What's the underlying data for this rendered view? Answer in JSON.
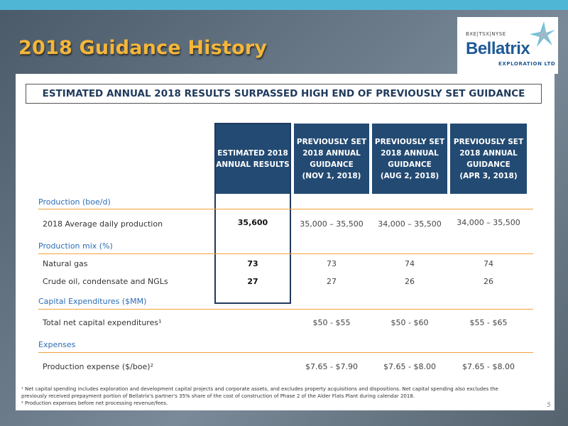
{
  "slide": {
    "title": "2018 Guidance History",
    "page_number": "5"
  },
  "logo": {
    "ticker": "BXE|TSX|NYSE",
    "name": "Bellatrix",
    "subtitle": "EXPLORATION LTD"
  },
  "banner": "ESTIMATED ANNUAL 2018 RESULTS SURPASSED HIGH END OF PREVIOUSLY SET GUIDANCE",
  "columns": {
    "estimated": [
      "ESTIMATED 2018",
      "ANNUAL RESULTS"
    ],
    "nov": [
      "PREVIOUSLY SET",
      "2018 ANNUAL",
      "GUIDANCE",
      "(NOV 1, 2018)"
    ],
    "aug": [
      "PREVIOUSLY SET",
      "2018 ANNUAL",
      "GUIDANCE",
      "(AUG 2, 2018)"
    ],
    "apr": [
      "PREVIOUSLY SET",
      "2018 ANNUAL",
      "GUIDANCE",
      "(APR 3, 2018)"
    ]
  },
  "sections": {
    "production": "Production (boe/d)",
    "production_mix": "Production mix (%)",
    "capex": "Capital Expenditures ($MM)",
    "expenses": "Expenses"
  },
  "rows": {
    "avg_production": {
      "label": "2018 Average daily production",
      "estimated": "35,600",
      "nov": "35,000 – 35,500",
      "aug": "34,000 – 35,500",
      "apr": "34,000 – 35,500"
    },
    "natural_gas": {
      "label": "Natural gas",
      "estimated": "73",
      "nov": "73",
      "aug": "74",
      "apr": "74"
    },
    "crude_oil": {
      "label": "Crude oil, condensate and NGLs",
      "estimated": "27",
      "nov": "27",
      "aug": "26",
      "apr": "26"
    },
    "net_capex": {
      "label": "Total net capital expenditures¹",
      "estimated": "",
      "nov": "$50 - $55",
      "aug": "$50 - $60",
      "apr": "$55 - $65"
    },
    "prod_expense": {
      "label": "Production expense ($/boe)²",
      "estimated": "",
      "nov": "$7.65 - $7.90",
      "aug": "$7.65 - $8.00",
      "apr": "$7.65 - $8.00"
    }
  },
  "footnotes": {
    "one": "¹ Net capital spending includes exploration and development capital projects and corporate assets, and excludes property acquisitions and dispositions. Net capital spending also excludes the previously received prepayment portion of Bellatrix's partner's 35% share of the cost of construction of Phase 2 of the Alder Flats Plant during calendar 2018.",
    "two": "² Production expenses before net processing revenue/fees."
  },
  "colors": {
    "accent_orange": "#f4b63a",
    "header_navy": "#234a72",
    "section_blue": "#2b6db5",
    "rule_orange": "#f0a23a"
  }
}
